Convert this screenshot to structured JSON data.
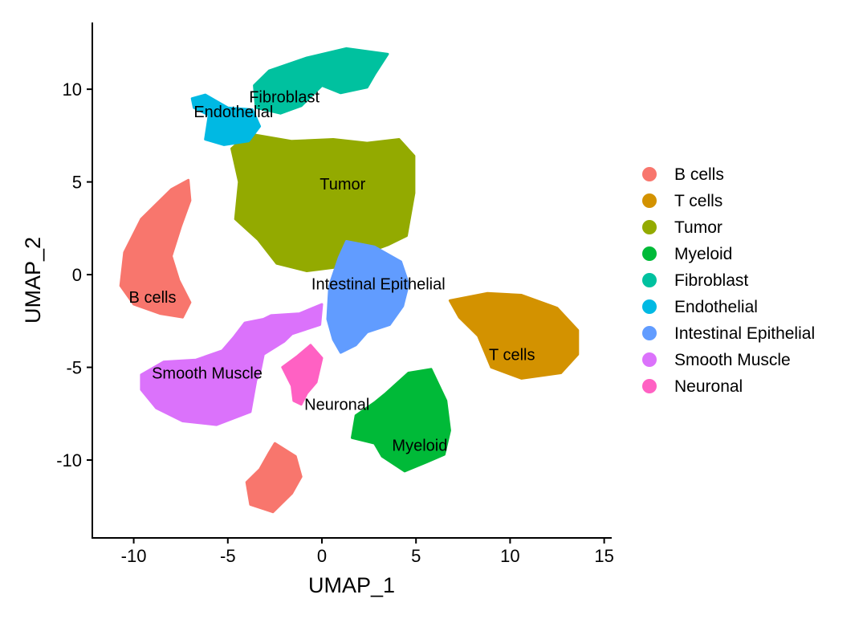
{
  "chart_data": {
    "type": "scatter",
    "title": "",
    "xlabel": "UMAP_1",
    "ylabel": "UMAP_2",
    "xlim": [
      -12.2,
      15.4
    ],
    "ylim": [
      -14.2,
      13.6
    ],
    "xticks": [
      -10,
      -5,
      0,
      5,
      10,
      15
    ],
    "yticks": [
      -10,
      -5,
      0,
      5,
      10
    ],
    "xtick_labels": [
      "-10",
      "-5",
      "0",
      "5",
      "10",
      "15"
    ],
    "ytick_labels": [
      "-10",
      "-5",
      "0",
      "5",
      "10"
    ],
    "grid": false,
    "legend_position": "right",
    "legend": [
      {
        "name": "B cells",
        "color": "#F8766D"
      },
      {
        "name": "T cells",
        "color": "#D39200"
      },
      {
        "name": "Tumor",
        "color": "#93AA00"
      },
      {
        "name": "Myeloid",
        "color": "#00BA38"
      },
      {
        "name": "Fibroblast",
        "color": "#00C19F"
      },
      {
        "name": "Endothelial",
        "color": "#00B9E3"
      },
      {
        "name": "Intestinal Epithelial",
        "color": "#619CFF"
      },
      {
        "name": "Smooth Muscle",
        "color": "#DB72FB"
      },
      {
        "name": "Neuronal",
        "color": "#FF61C3"
      }
    ],
    "cluster_labels": [
      {
        "text": "Fibroblast",
        "x": -2.0,
        "y": 9.6
      },
      {
        "text": "Endothelial",
        "x": -4.7,
        "y": 8.8
      },
      {
        "text": "Tumor",
        "x": 1.1,
        "y": 4.9
      },
      {
        "text": "Intestinal Epithelial",
        "x": 3.0,
        "y": -0.5
      },
      {
        "text": "B cells",
        "x": -9.0,
        "y": -1.2
      },
      {
        "text": "T cells",
        "x": 10.1,
        "y": -4.3
      },
      {
        "text": "Smooth Muscle",
        "x": -6.1,
        "y": -5.3
      },
      {
        "text": "Neuronal",
        "x": 0.8,
        "y": -7.0
      },
      {
        "text": "Myeloid",
        "x": 5.2,
        "y": -9.2
      }
    ],
    "clusters": [
      {
        "name": "B cells",
        "color": "#F8766D",
        "shape": [
          [
            -7.1,
            5.1
          ],
          [
            -8.0,
            4.6
          ],
          [
            -9.6,
            3.0
          ],
          [
            -10.5,
            1.2
          ],
          [
            -10.7,
            -0.6
          ],
          [
            -10.0,
            -1.6
          ],
          [
            -8.6,
            -2.1
          ],
          [
            -7.4,
            -2.3
          ],
          [
            -7.0,
            -1.5
          ],
          [
            -7.6,
            -0.3
          ],
          [
            -8.0,
            1.0
          ],
          [
            -7.5,
            2.6
          ],
          [
            -7.0,
            4.0
          ]
        ]
      },
      {
        "name": "B cells",
        "color": "#F8766D",
        "shape": [
          [
            -2.5,
            -9.1
          ],
          [
            -1.4,
            -9.8
          ],
          [
            -1.1,
            -10.9
          ],
          [
            -1.6,
            -11.8
          ],
          [
            -2.6,
            -12.8
          ],
          [
            -3.8,
            -12.4
          ],
          [
            -4.0,
            -11.2
          ],
          [
            -3.3,
            -10.5
          ],
          [
            -2.8,
            -9.6
          ]
        ]
      },
      {
        "name": "Tumor",
        "color": "#93AA00",
        "shape": [
          [
            -3.9,
            7.6
          ],
          [
            -1.6,
            7.2
          ],
          [
            0.6,
            7.3
          ],
          [
            2.4,
            7.1
          ],
          [
            4.1,
            7.3
          ],
          [
            4.9,
            6.4
          ],
          [
            4.9,
            4.4
          ],
          [
            4.5,
            2.1
          ],
          [
            3.5,
            1.6
          ],
          [
            1.9,
            1.0
          ],
          [
            0.8,
            0.4
          ],
          [
            -0.8,
            0.2
          ],
          [
            -2.4,
            0.6
          ],
          [
            -3.4,
            1.9
          ],
          [
            -4.6,
            3.0
          ],
          [
            -4.4,
            5.0
          ],
          [
            -4.8,
            6.8
          ]
        ]
      },
      {
        "name": "Fibroblast",
        "color": "#00C19F",
        "shape": [
          [
            -2.8,
            11.0
          ],
          [
            -0.8,
            11.7
          ],
          [
            1.3,
            12.2
          ],
          [
            3.5,
            11.9
          ],
          [
            2.8,
            10.8
          ],
          [
            2.4,
            10.1
          ],
          [
            1.0,
            9.8
          ],
          [
            0.0,
            10.2
          ],
          [
            -1.1,
            9.1
          ],
          [
            -2.2,
            8.7
          ],
          [
            -3.5,
            9.0
          ],
          [
            -3.6,
            10.2
          ]
        ]
      },
      {
        "name": "Endothelial",
        "color": "#00B9E3",
        "shape": [
          [
            -6.9,
            9.5
          ],
          [
            -6.2,
            9.7
          ],
          [
            -5.0,
            9.0
          ],
          [
            -3.7,
            8.9
          ],
          [
            -3.3,
            8.0
          ],
          [
            -3.9,
            7.2
          ],
          [
            -5.2,
            7.0
          ],
          [
            -6.2,
            7.3
          ],
          [
            -6.0,
            8.6
          ],
          [
            -6.8,
            9.0
          ]
        ]
      },
      {
        "name": "Intestinal Epithelial",
        "color": "#619CFF",
        "shape": [
          [
            1.3,
            1.8
          ],
          [
            2.8,
            1.5
          ],
          [
            4.2,
            0.7
          ],
          [
            4.6,
            -0.5
          ],
          [
            4.3,
            -1.7
          ],
          [
            3.6,
            -2.7
          ],
          [
            2.4,
            -3.1
          ],
          [
            1.8,
            -3.8
          ],
          [
            1.0,
            -4.2
          ],
          [
            0.6,
            -3.5
          ],
          [
            0.3,
            -2.4
          ],
          [
            0.4,
            -0.6
          ],
          [
            0.9,
            0.9
          ]
        ]
      },
      {
        "name": "T cells",
        "color": "#D39200",
        "shape": [
          [
            6.8,
            -1.4
          ],
          [
            8.8,
            -1.0
          ],
          [
            10.6,
            -1.1
          ],
          [
            12.5,
            -1.8
          ],
          [
            13.6,
            -3.0
          ],
          [
            13.6,
            -4.3
          ],
          [
            12.7,
            -5.3
          ],
          [
            10.6,
            -5.6
          ],
          [
            9.0,
            -5.0
          ],
          [
            8.3,
            -3.3
          ],
          [
            7.3,
            -2.3
          ]
        ]
      },
      {
        "name": "Smooth Muscle",
        "color": "#DB72FB",
        "shape": [
          [
            -2.7,
            -2.2
          ],
          [
            -1.2,
            -2.1
          ],
          [
            0.0,
            -1.6
          ],
          [
            -0.1,
            -2.7
          ],
          [
            -1.6,
            -3.2
          ],
          [
            -2.0,
            -3.6
          ],
          [
            -3.1,
            -4.3
          ],
          [
            -3.3,
            -5.3
          ],
          [
            -3.5,
            -5.7
          ],
          [
            -3.8,
            -7.4
          ],
          [
            -5.6,
            -8.1
          ],
          [
            -7.4,
            -7.9
          ],
          [
            -8.8,
            -7.2
          ],
          [
            -9.6,
            -6.2
          ],
          [
            -9.6,
            -5.4
          ],
          [
            -8.4,
            -4.7
          ],
          [
            -6.7,
            -4.6
          ],
          [
            -5.3,
            -4.1
          ],
          [
            -4.7,
            -3.4
          ],
          [
            -4.1,
            -2.6
          ],
          [
            -3.1,
            -2.4
          ]
        ]
      },
      {
        "name": "Neuronal",
        "color": "#FF61C3",
        "shape": [
          [
            -1.3,
            -4.4
          ],
          [
            -0.6,
            -3.8
          ],
          [
            0.0,
            -4.5
          ],
          [
            -0.3,
            -5.8
          ],
          [
            -0.8,
            -6.4
          ],
          [
            -1.1,
            -7.0
          ],
          [
            -1.5,
            -6.8
          ],
          [
            -1.6,
            -6.0
          ],
          [
            -2.1,
            -5.0
          ]
        ]
      },
      {
        "name": "Myeloid",
        "color": "#00BA38",
        "shape": [
          [
            3.4,
            -6.4
          ],
          [
            4.6,
            -5.3
          ],
          [
            5.8,
            -5.1
          ],
          [
            6.6,
            -6.8
          ],
          [
            6.8,
            -8.4
          ],
          [
            6.5,
            -9.7
          ],
          [
            5.6,
            -10.1
          ],
          [
            4.4,
            -10.6
          ],
          [
            3.2,
            -9.8
          ],
          [
            2.8,
            -9.1
          ],
          [
            1.6,
            -8.8
          ],
          [
            1.8,
            -7.6
          ],
          [
            2.8,
            -6.9
          ]
        ]
      }
    ]
  }
}
